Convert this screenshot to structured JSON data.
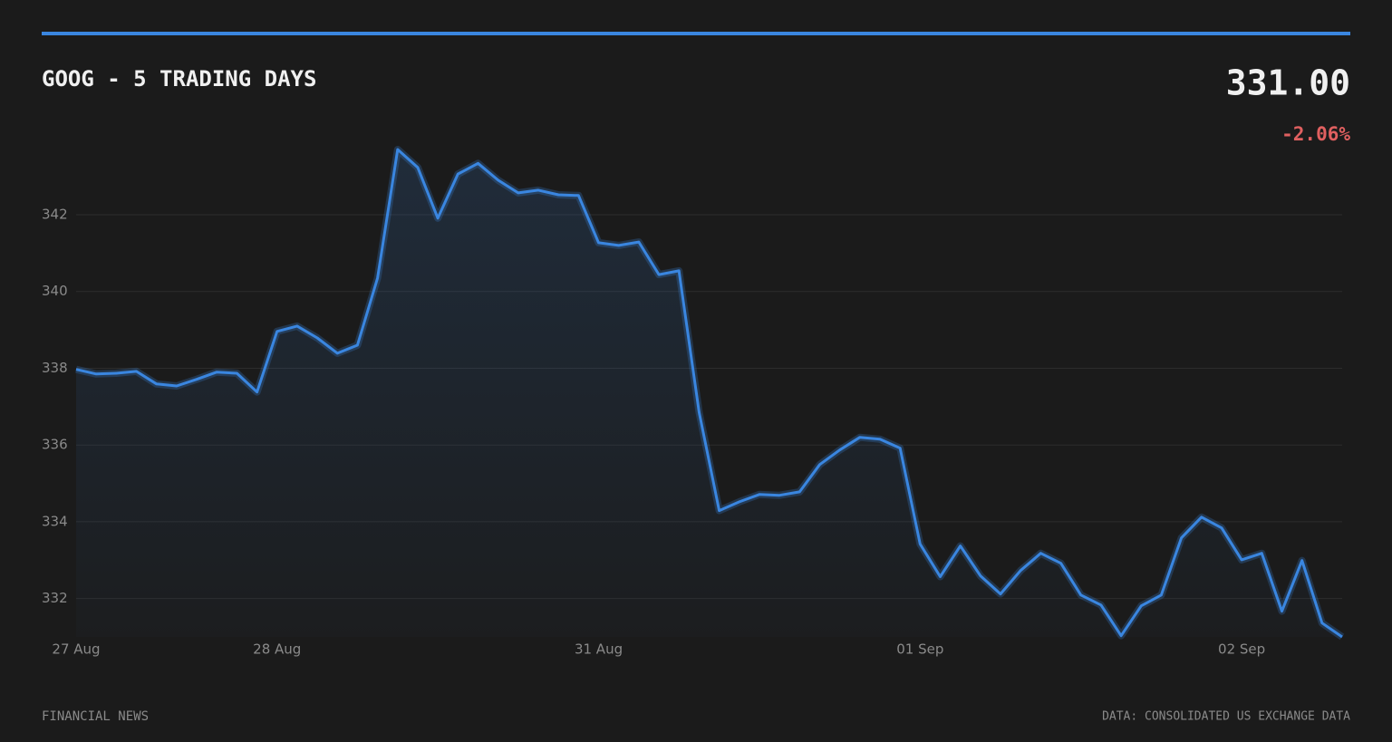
{
  "header": {
    "title": "GOOG - 5 TRADING DAYS",
    "price": "331.00",
    "change": "-2.06%"
  },
  "chart_data": {
    "type": "line",
    "color": "#3a86e0",
    "grid": true,
    "categories": [
      "27 Aug",
      null,
      null,
      null,
      null,
      null,
      null,
      null,
      null,
      null,
      "28 Aug",
      null,
      null,
      null,
      null,
      null,
      null,
      null,
      null,
      null,
      null,
      null,
      null,
      null,
      null,
      null,
      "31 Aug",
      null,
      null,
      null,
      null,
      null,
      null,
      null,
      null,
      null,
      null,
      null,
      null,
      null,
      null,
      null,
      "01 Sep",
      null,
      null,
      null,
      null,
      null,
      null,
      null,
      null,
      null,
      null,
      null,
      null,
      null,
      null,
      null,
      "02 Sep",
      null,
      null,
      null,
      null,
      null
    ],
    "values": [
      337.97,
      337.85,
      337.87,
      337.92,
      337.59,
      337.54,
      337.71,
      337.9,
      337.87,
      337.38,
      338.96,
      339.1,
      338.79,
      338.39,
      338.6,
      340.35,
      343.7,
      343.23,
      341.91,
      343.06,
      343.34,
      342.9,
      342.57,
      342.64,
      342.52,
      342.5,
      341.27,
      341.2,
      341.29,
      340.44,
      340.54,
      336.86,
      334.29,
      334.52,
      334.71,
      334.69,
      334.78,
      335.49,
      335.87,
      336.2,
      336.15,
      335.92,
      333.42,
      332.57,
      333.37,
      332.59,
      332.12,
      332.73,
      333.18,
      332.92,
      332.09,
      331.83,
      331.03,
      331.81,
      332.09,
      333.58,
      334.12,
      333.84,
      333.01,
      333.18,
      331.67,
      332.99,
      331.36,
      331.0
    ],
    "ylim": [
      331.0,
      343.7
    ],
    "yticks": [
      332,
      334,
      336,
      338,
      340,
      342
    ]
  },
  "footer": {
    "left": "FINANCIAL NEWS",
    "right": "DATA: CONSOLIDATED US EXCHANGE DATA"
  }
}
